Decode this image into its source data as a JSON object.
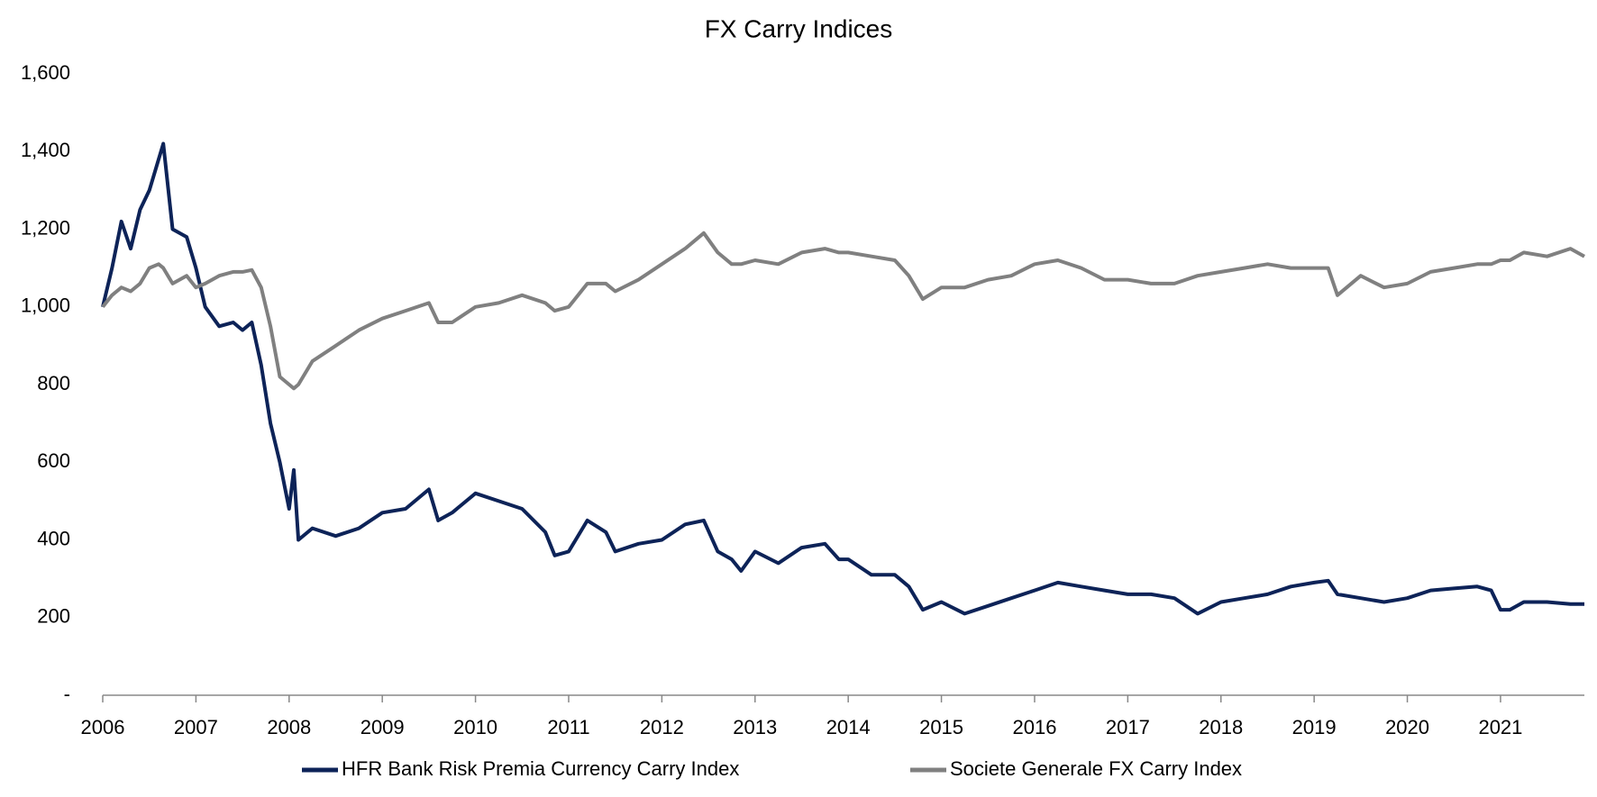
{
  "chart_data": {
    "type": "line",
    "title": "FX Carry Indices",
    "x": [
      2006.0,
      2006.1,
      2006.2,
      2006.3,
      2006.4,
      2006.5,
      2006.6,
      2006.65,
      2006.75,
      2006.9,
      2007.0,
      2007.1,
      2007.25,
      2007.4,
      2007.5,
      2007.6,
      2007.7,
      2007.8,
      2007.9,
      2008.0,
      2008.05,
      2008.1,
      2008.25,
      2008.5,
      2008.75,
      2009.0,
      2009.25,
      2009.5,
      2009.6,
      2009.75,
      2010.0,
      2010.25,
      2010.5,
      2010.75,
      2010.85,
      2011.0,
      2011.2,
      2011.4,
      2011.5,
      2011.75,
      2012.0,
      2012.25,
      2012.45,
      2012.6,
      2012.75,
      2012.85,
      2013.0,
      2013.25,
      2013.5,
      2013.75,
      2013.9,
      2014.0,
      2014.25,
      2014.5,
      2014.65,
      2014.8,
      2015.0,
      2015.25,
      2015.5,
      2015.75,
      2016.0,
      2016.25,
      2016.5,
      2016.75,
      2017.0,
      2017.25,
      2017.5,
      2017.75,
      2018.0,
      2018.25,
      2018.5,
      2018.75,
      2019.0,
      2019.15,
      2019.25,
      2019.5,
      2019.75,
      2020.0,
      2020.25,
      2020.5,
      2020.75,
      2020.9,
      2021.0,
      2021.1,
      2021.25,
      2021.5,
      2021.75,
      2021.9
    ],
    "series": [
      {
        "name": "HFR Bank Risk Premia Currency Carry Index",
        "color": "#0d2358",
        "values": [
          1000,
          1100,
          1220,
          1150,
          1250,
          1300,
          1380,
          1420,
          1200,
          1180,
          1100,
          1000,
          950,
          960,
          940,
          960,
          850,
          700,
          600,
          480,
          580,
          400,
          430,
          410,
          430,
          470,
          480,
          530,
          450,
          470,
          520,
          500,
          480,
          420,
          360,
          370,
          450,
          420,
          370,
          390,
          400,
          440,
          450,
          370,
          350,
          320,
          370,
          340,
          380,
          390,
          350,
          350,
          310,
          310,
          280,
          220,
          240,
          210,
          230,
          250,
          270,
          290,
          280,
          270,
          260,
          260,
          250,
          210,
          240,
          250,
          260,
          280,
          290,
          295,
          260,
          250,
          240,
          250,
          270,
          275,
          280,
          270,
          220,
          220,
          240,
          240,
          235,
          235
        ]
      },
      {
        "name": "Societe Generale FX Carry Index",
        "color": "#808080",
        "values": [
          1000,
          1030,
          1050,
          1040,
          1060,
          1100,
          1110,
          1100,
          1060,
          1080,
          1050,
          1060,
          1080,
          1090,
          1090,
          1095,
          1050,
          950,
          820,
          800,
          790,
          800,
          860,
          900,
          940,
          970,
          990,
          1010,
          960,
          960,
          1000,
          1010,
          1030,
          1010,
          990,
          1000,
          1060,
          1060,
          1040,
          1070,
          1110,
          1150,
          1190,
          1140,
          1110,
          1110,
          1120,
          1110,
          1140,
          1150,
          1140,
          1140,
          1130,
          1120,
          1080,
          1020,
          1050,
          1050,
          1070,
          1080,
          1110,
          1120,
          1100,
          1070,
          1070,
          1060,
          1060,
          1080,
          1090,
          1100,
          1110,
          1100,
          1100,
          1100,
          1030,
          1080,
          1050,
          1060,
          1090,
          1100,
          1110,
          1110,
          1120,
          1120,
          1140,
          1130,
          1150,
          1130
        ]
      }
    ],
    "xlim": [
      2006,
      2021.9
    ],
    "xticks": [
      2006,
      2007,
      2008,
      2009,
      2010,
      2011,
      2012,
      2013,
      2014,
      2015,
      2016,
      2017,
      2018,
      2019,
      2020,
      2021
    ],
    "ylim": [
      0,
      1600
    ],
    "yticks": [
      {
        "value": 0,
        "label": "-"
      },
      200,
      400,
      600,
      800,
      {
        "value": 1000,
        "label": "1,000"
      },
      {
        "value": 1200,
        "label": "1,200"
      },
      {
        "value": 1400,
        "label": "1,400"
      },
      {
        "value": 1600,
        "label": "1,600"
      }
    ],
    "grid": false,
    "legend": "bottom"
  }
}
